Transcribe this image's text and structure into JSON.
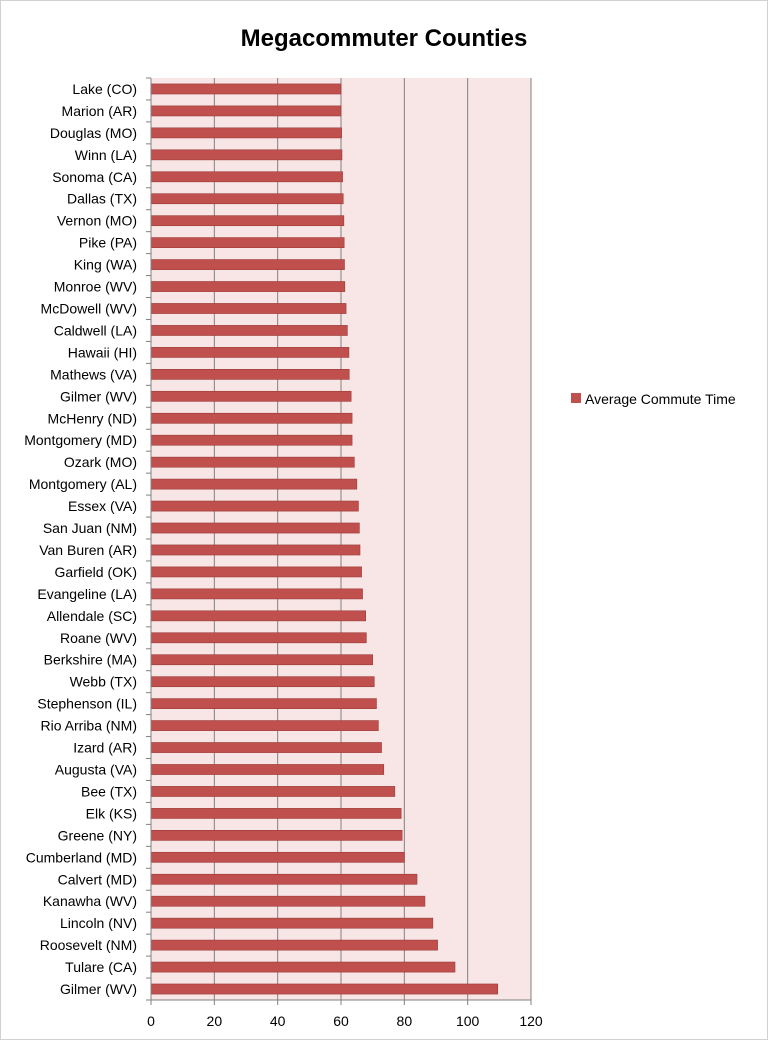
{
  "chart_data": {
    "type": "bar",
    "orientation": "horizontal",
    "title": "Megacommuter Counties",
    "xlabel": "",
    "ylabel": "",
    "xlim": [
      0,
      120
    ],
    "x_ticks": [
      0,
      20,
      40,
      60,
      80,
      100,
      120
    ],
    "grid": "vertical",
    "legend_position": "right",
    "colors": {
      "bar": "#c0504d",
      "plot_background": "#f8e6e6",
      "grid": "#808080",
      "axis": "#808080"
    },
    "series": [
      {
        "name": "Average Commute Time",
        "values": [
          60,
          60,
          60.2,
          60.3,
          60.5,
          60.7,
          60.9,
          61,
          61.1,
          61.2,
          61.6,
          62,
          62.5,
          62.6,
          63.2,
          63.5,
          63.5,
          64.2,
          65,
          65.5,
          65.8,
          66,
          66.5,
          66.8,
          67.8,
          68,
          70,
          70.5,
          71.2,
          71.8,
          72.8,
          73.5,
          77,
          79,
          79.3,
          80,
          84,
          86.5,
          89,
          90.5,
          96,
          109.5
        ]
      }
    ],
    "categories": [
      "Lake (CO)",
      "Marion (AR)",
      "Douglas (MO)",
      "Winn (LA)",
      "Sonoma (CA)",
      "Dallas (TX)",
      "Vernon (MO)",
      "Pike (PA)",
      "King (WA)",
      "Monroe (WV)",
      "McDowell (WV)",
      "Caldwell (LA)",
      "Hawaii (HI)",
      "Mathews (VA)",
      "Gilmer (WV)",
      "McHenry (ND)",
      "Montgomery (MD)",
      "Ozark (MO)",
      "Montgomery (AL)",
      "Essex (VA)",
      "San Juan (NM)",
      "Van Buren (AR)",
      "Garfield (OK)",
      "Evangeline (LA)",
      "Allendale (SC)",
      "Roane (WV)",
      "Berkshire (MA)",
      "Webb (TX)",
      "Stephenson (IL)",
      "Rio Arriba (NM)",
      "Izard (AR)",
      "Augusta (VA)",
      "Bee (TX)",
      "Elk (KS)",
      "Greene (NY)",
      "Cumberland (MD)",
      "Calvert (MD)",
      "Kanawha (WV)",
      "Lincoln (NV)",
      "Roosevelt (NM)",
      "Tulare (CA)",
      "Gilmer (WV)"
    ]
  }
}
